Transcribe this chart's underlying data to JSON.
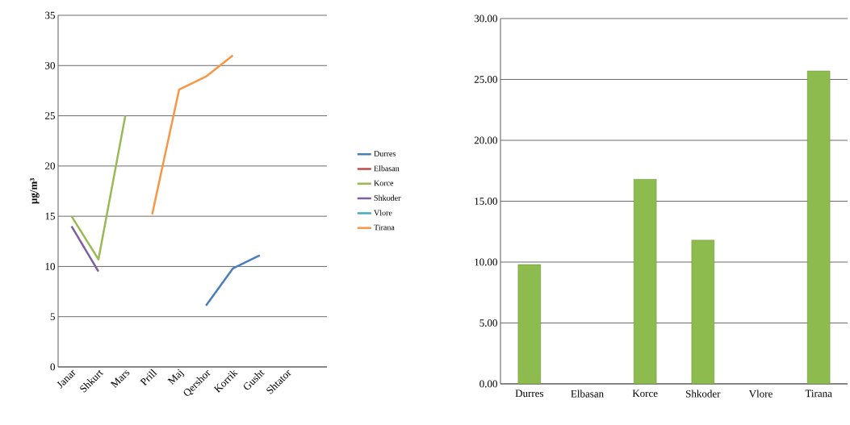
{
  "chart_data": [
    {
      "type": "line",
      "ylabel": "µg/m³",
      "categories": [
        "Janar",
        "Shkurt",
        "Mars",
        "Prill",
        "Maj",
        "Qershor",
        "Korrik",
        "Gusht",
        "Shtator",
        null
      ],
      "series": [
        {
          "name": "Durres",
          "color": "#4a7ebb",
          "values": [
            null,
            null,
            null,
            null,
            null,
            6.1,
            9.8,
            11.1,
            null,
            null
          ]
        },
        {
          "name": "Elbasan",
          "color": "#be4b48",
          "values": [
            null,
            null,
            null,
            null,
            null,
            null,
            null,
            null,
            null,
            null
          ]
        },
        {
          "name": "Korce",
          "color": "#98b954",
          "values": [
            15,
            10.7,
            25,
            null,
            null,
            null,
            null,
            null,
            null,
            null
          ]
        },
        {
          "name": "Shkoder",
          "color": "#7d60a0",
          "values": [
            14,
            9.5,
            null,
            null,
            null,
            null,
            null,
            null,
            null,
            null
          ]
        },
        {
          "name": "Vlore",
          "color": "#46aac5",
          "values": [
            null,
            null,
            null,
            null,
            null,
            null,
            null,
            null,
            null,
            null
          ]
        },
        {
          "name": "Tirana",
          "color": "#f79646",
          "values": [
            null,
            null,
            null,
            15.2,
            27.6,
            28.9,
            31,
            null,
            null,
            null
          ]
        }
      ],
      "ylim": [
        0,
        35
      ],
      "yticks": [
        0,
        5,
        10,
        15,
        20,
        25,
        30,
        35
      ],
      "grid": "y",
      "legend": "right"
    },
    {
      "type": "bar",
      "categories": [
        "Durres",
        "Elbasan",
        "Korce",
        "Shkoder",
        "Vlore",
        "Tirana"
      ],
      "values": [
        9.8,
        null,
        16.8,
        11.8,
        null,
        25.7
      ],
      "color": "#8dbb4e",
      "ylim": [
        0,
        30
      ],
      "yticks": [
        {
          "value": 0,
          "label": "0.00"
        },
        {
          "value": 5,
          "label": "5.00"
        },
        {
          "value": 10,
          "label": "10.00"
        },
        {
          "value": 15,
          "label": "15.00"
        },
        {
          "value": 20,
          "label": "20.00"
        },
        {
          "value": 25,
          "label": "25.00"
        },
        {
          "value": 30,
          "label": "30.00"
        }
      ],
      "grid": "y"
    }
  ]
}
